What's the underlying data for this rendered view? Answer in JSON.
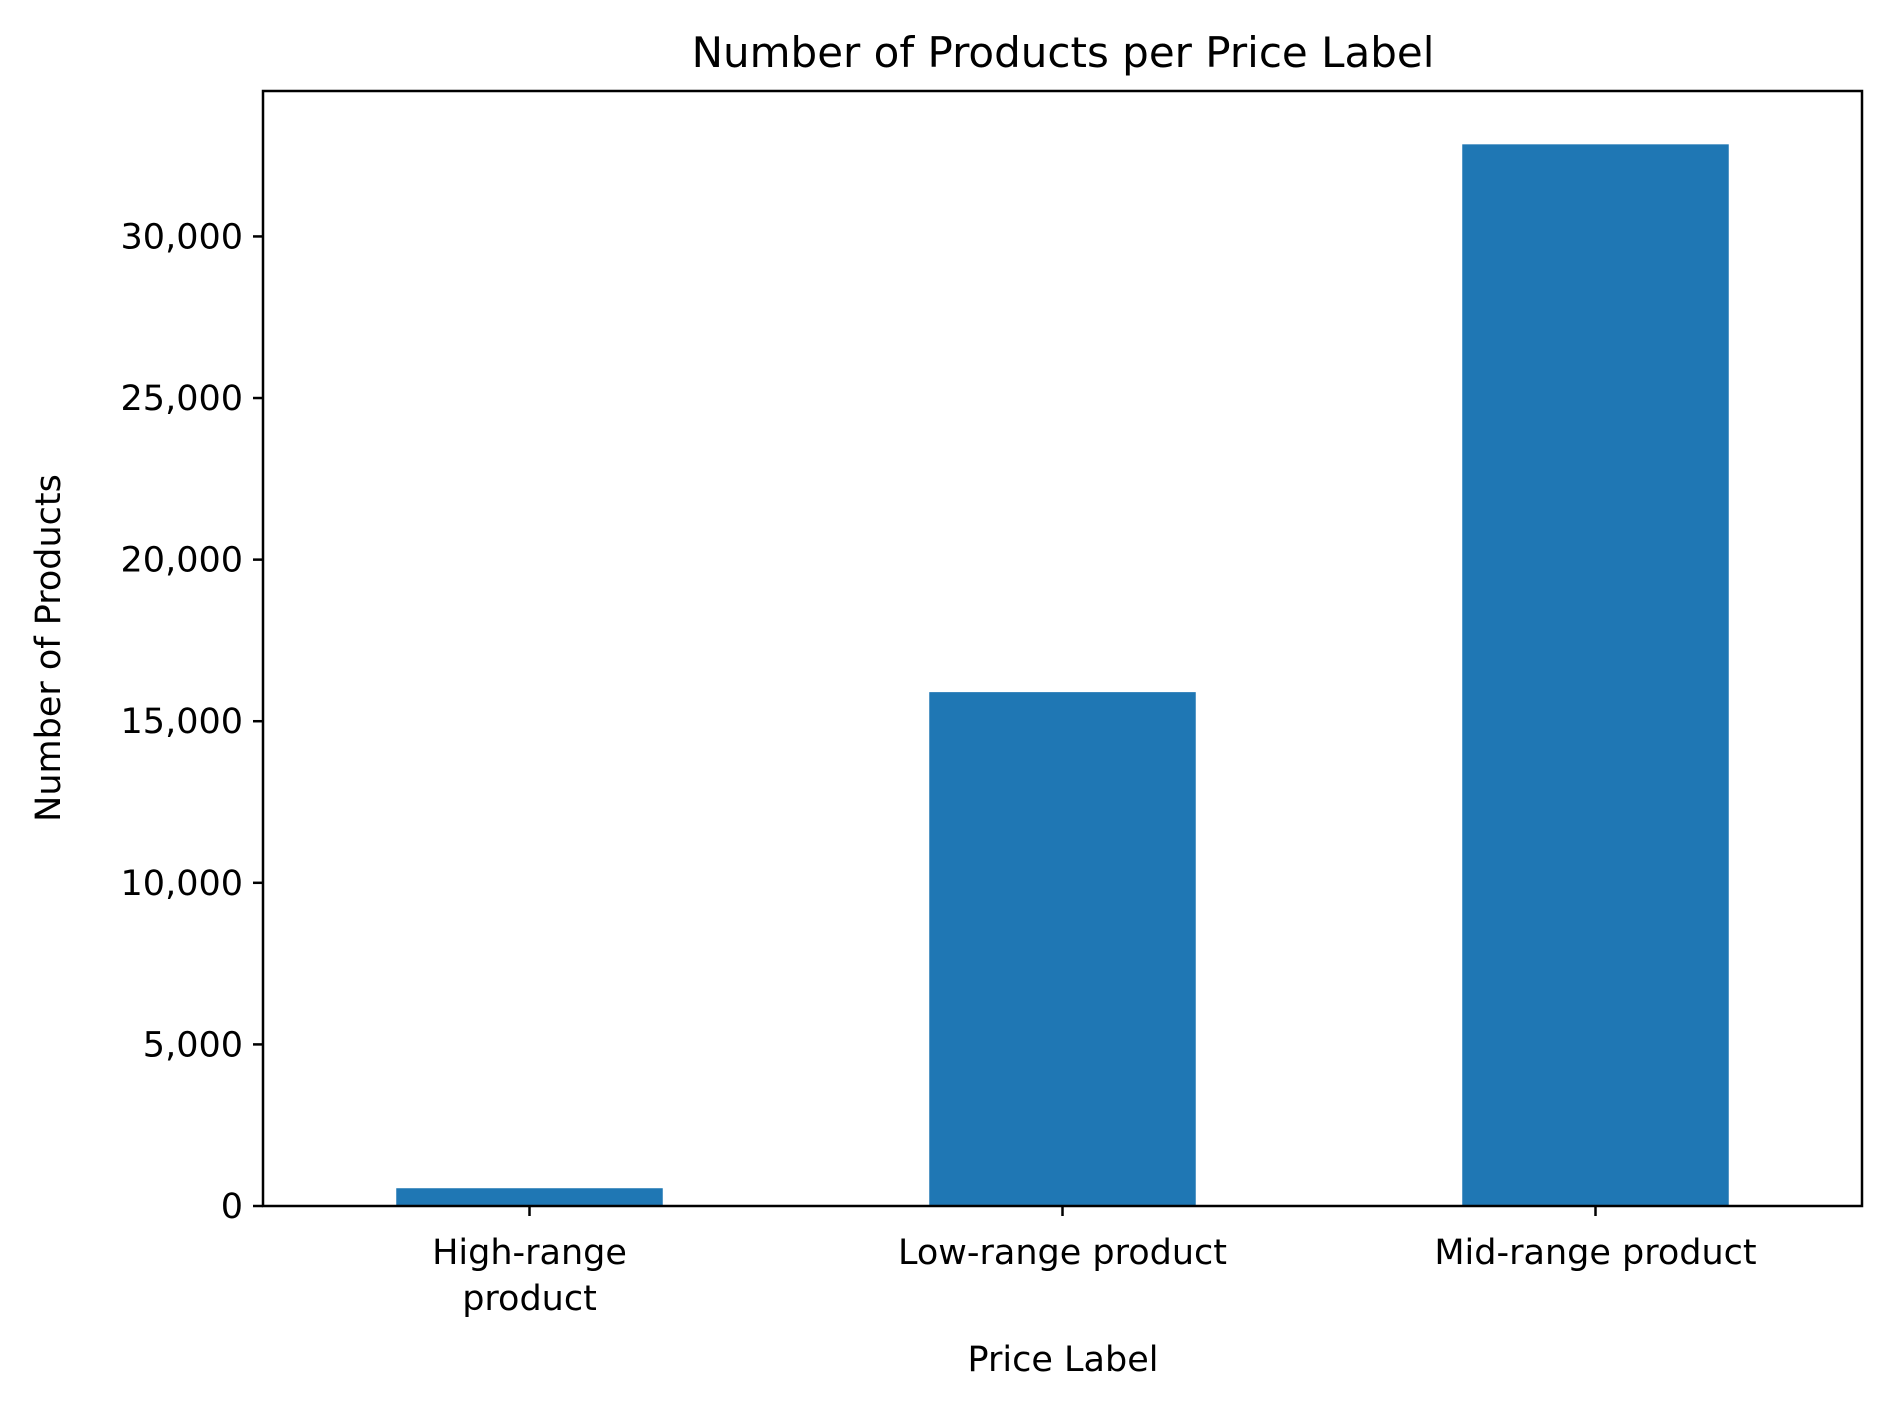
{
  "chart_data": {
    "type": "bar",
    "title": "Number of Products per Price Label",
    "xlabel": "Price Label",
    "ylabel": "Number of Products",
    "categories": [
      "High-range product",
      "Low-range product",
      "Mid-range product"
    ],
    "category_tick_lines": [
      [
        "High-range",
        "product"
      ],
      [
        "Low-range product"
      ],
      [
        "Mid-range product"
      ]
    ],
    "values": [
      550,
      15900,
      32850
    ],
    "ylim": [
      0,
      34500
    ],
    "yticks": [
      0,
      5000,
      10000,
      15000,
      20000,
      25000,
      30000
    ],
    "ytick_labels": [
      "0",
      "5,000",
      "10,000",
      "15,000",
      "20,000",
      "25,000",
      "30,000"
    ],
    "grid": false,
    "legend": "none",
    "colors": {
      "bar": "#1f77b4",
      "axes": "#000000"
    }
  }
}
